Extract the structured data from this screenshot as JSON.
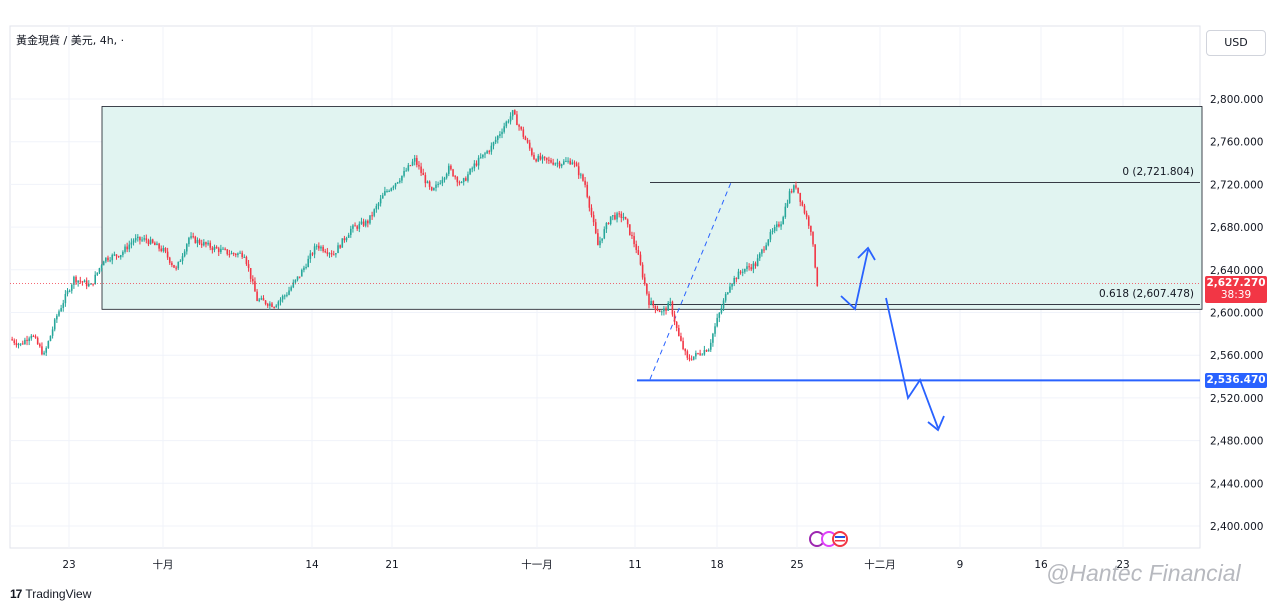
{
  "header": {
    "symbol": "黃金現貨 / 美元, 4h, ·"
  },
  "currency_button": "USD",
  "branding": {
    "tradingview": "TradingView",
    "watermark": "@Hantec Financial"
  },
  "price_tags": {
    "current_price": "2,627.270",
    "countdown": "38:39",
    "support": "2,536.470"
  },
  "fib_labels": {
    "level_0": "0 (2,721.804)",
    "level_0618": "0.618 (2,607.478)"
  },
  "colors": {
    "up": "#26a69a",
    "down": "#f23645",
    "zone": "#e1f4f1",
    "projection": "#2962ff",
    "price_tag": "#f23645",
    "support_tag": "#2962ff"
  },
  "chart_data": {
    "type": "candlestick",
    "ylim": [
      2380,
      2850
    ],
    "y_ticks": [
      2400,
      2440,
      2480,
      2520,
      2560,
      2600,
      2640,
      2680,
      2720,
      2760,
      2800
    ],
    "y_tick_labels": [
      "2,400.000",
      "2,440.000",
      "2,480.000",
      "2,520.000",
      "2,560.000",
      "2,600.000",
      "2,640.000",
      "2,680.000",
      "2,720.000",
      "2,760.000",
      "2,800.000"
    ],
    "x_tick_labels": [
      "23",
      "十月",
      "14",
      "21",
      "十一月",
      "11",
      "18",
      "25",
      "十二月",
      "9",
      "16",
      "23"
    ],
    "close_path": [
      {
        "i": 0,
        "p": 2575
      },
      {
        "i": 5,
        "p": 2570
      },
      {
        "i": 10,
        "p": 2580
      },
      {
        "i": 16,
        "p": 2560
      },
      {
        "i": 22,
        "p": 2597
      },
      {
        "i": 30,
        "p": 2632
      },
      {
        "i": 38,
        "p": 2625
      },
      {
        "i": 44,
        "p": 2650
      },
      {
        "i": 52,
        "p": 2655
      },
      {
        "i": 58,
        "p": 2668
      },
      {
        "i": 64,
        "p": 2668
      },
      {
        "i": 72,
        "p": 2658
      },
      {
        "i": 78,
        "p": 2640
      },
      {
        "i": 84,
        "p": 2670
      },
      {
        "i": 90,
        "p": 2665
      },
      {
        "i": 96,
        "p": 2660
      },
      {
        "i": 104,
        "p": 2655
      },
      {
        "i": 110,
        "p": 2655
      },
      {
        "i": 116,
        "p": 2612
      },
      {
        "i": 124,
        "p": 2607
      },
      {
        "i": 130,
        "p": 2618
      },
      {
        "i": 136,
        "p": 2635
      },
      {
        "i": 144,
        "p": 2663
      },
      {
        "i": 152,
        "p": 2655
      },
      {
        "i": 160,
        "p": 2678
      },
      {
        "i": 168,
        "p": 2685
      },
      {
        "i": 176,
        "p": 2712
      },
      {
        "i": 184,
        "p": 2728
      },
      {
        "i": 190,
        "p": 2743
      },
      {
        "i": 198,
        "p": 2712
      },
      {
        "i": 206,
        "p": 2735
      },
      {
        "i": 212,
        "p": 2720
      },
      {
        "i": 218,
        "p": 2738
      },
      {
        "i": 226,
        "p": 2755
      },
      {
        "i": 232,
        "p": 2775
      },
      {
        "i": 236,
        "p": 2787
      },
      {
        "i": 240,
        "p": 2770
      },
      {
        "i": 246,
        "p": 2745
      },
      {
        "i": 252,
        "p": 2742
      },
      {
        "i": 258,
        "p": 2740
      },
      {
        "i": 264,
        "p": 2742
      },
      {
        "i": 270,
        "p": 2720
      },
      {
        "i": 276,
        "p": 2663
      },
      {
        "i": 282,
        "p": 2690
      },
      {
        "i": 288,
        "p": 2690
      },
      {
        "i": 294,
        "p": 2660
      },
      {
        "i": 300,
        "p": 2610
      },
      {
        "i": 306,
        "p": 2600
      },
      {
        "i": 310,
        "p": 2608
      },
      {
        "i": 314,
        "p": 2577
      },
      {
        "i": 318,
        "p": 2556
      },
      {
        "i": 322,
        "p": 2560
      },
      {
        "i": 328,
        "p": 2567
      },
      {
        "i": 332,
        "p": 2593
      },
      {
        "i": 338,
        "p": 2627
      },
      {
        "i": 344,
        "p": 2640
      },
      {
        "i": 350,
        "p": 2645
      },
      {
        "i": 356,
        "p": 2670
      },
      {
        "i": 362,
        "p": 2685
      },
      {
        "i": 366,
        "p": 2712
      },
      {
        "i": 369,
        "p": 2719
      },
      {
        "i": 372,
        "p": 2700
      },
      {
        "i": 376,
        "p": 2678
      },
      {
        "i": 379,
        "p": 2627
      }
    ],
    "range_box": {
      "top": 2793,
      "bottom": 2603
    },
    "fib": {
      "level_0": 2721.804,
      "level_0618": 2607.478
    },
    "support_line": 2536.47,
    "current_price": 2627.27
  }
}
